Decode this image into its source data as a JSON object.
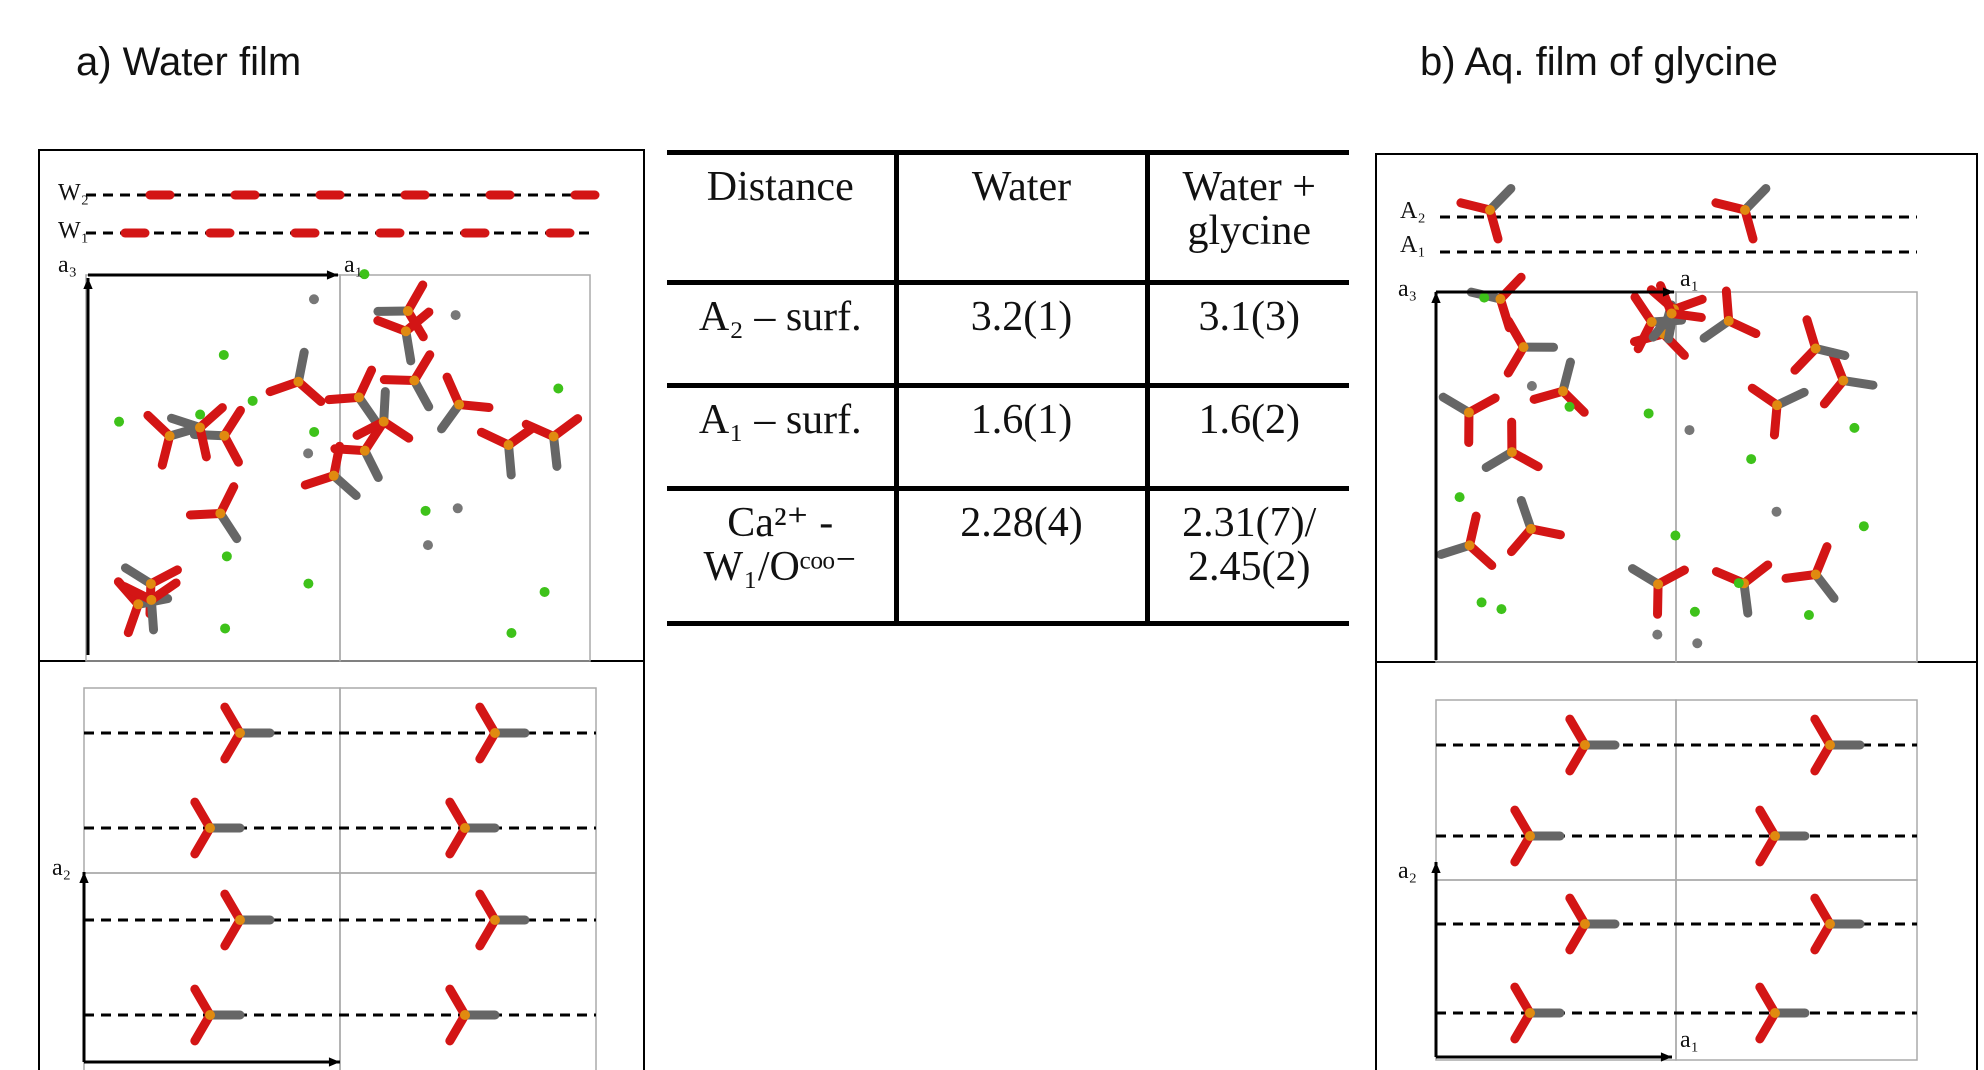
{
  "panels": [
    {
      "title": "a) Water film",
      "labels": [
        "W₂",
        "W₁",
        "a₃",
        "a₁",
        "a₂"
      ]
    },
    {
      "title": "b) Aq. film of glycine",
      "labels": [
        "A₂",
        "A₁",
        "a₃",
        "a₁",
        "a₂",
        "a₁"
      ]
    }
  ],
  "table": {
    "header": [
      "Distance",
      "Water",
      "Water + glycine"
    ],
    "rows": [
      [
        "A₂ – surf.",
        "3.2(1)",
        "3.1(3)"
      ],
      [
        "A₁ – surf.",
        "1.6(1)",
        "1.6(2)"
      ],
      [
        "Ca²⁺ - W₁/Oᶜᵒᵒ⁻",
        "2.28(4)",
        "2.31(7)/ 2.45(2)"
      ]
    ]
  }
}
